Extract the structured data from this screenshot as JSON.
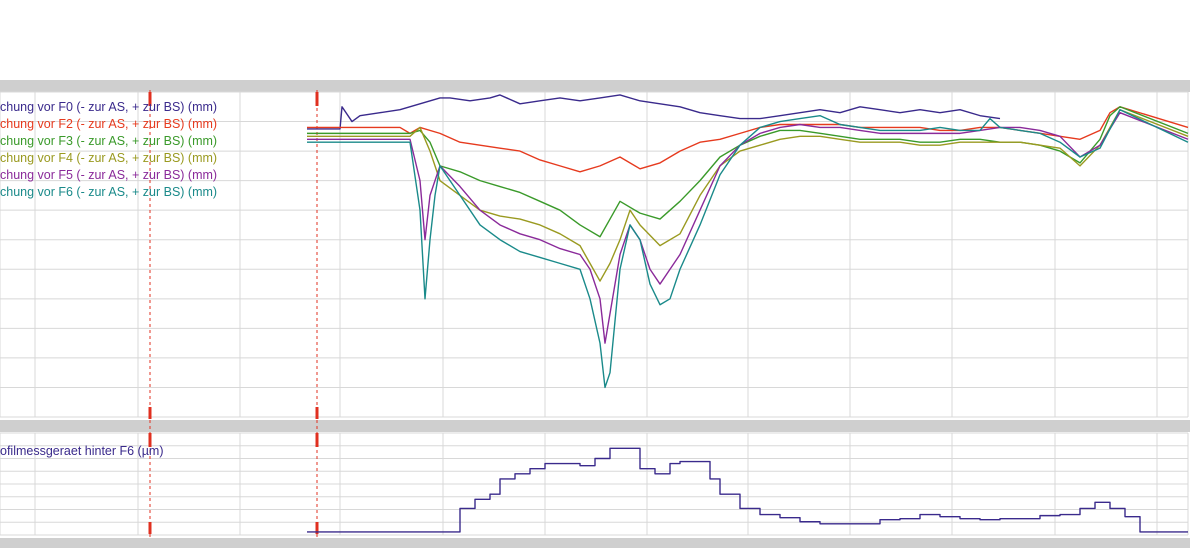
{
  "colors": {
    "background": "#ffffff",
    "panel_band": "#cfcfcf",
    "grid": "#d8d8d8",
    "marker": "#e03020"
  },
  "chart_data": [
    {
      "type": "line",
      "panel": "upper",
      "title": "",
      "xlabel": "",
      "ylabel": "",
      "xlim": [
        0,
        1200
      ],
      "ylim": [
        -100,
        10
      ],
      "grid": true,
      "legend_position": "top-left",
      "vertical_markers": [
        150,
        317
      ],
      "series": [
        {
          "name": "chung vor F0 (- zur AS, + zur BS) (mm)",
          "color": "#3a2a8c",
          "x": [
            307,
            340,
            342,
            352,
            360,
            380,
            400,
            420,
            440,
            450,
            470,
            490,
            500,
            520,
            540,
            560,
            580,
            600,
            620,
            640,
            660,
            680,
            700,
            720,
            740,
            760,
            780,
            800,
            820,
            840,
            860,
            880,
            900,
            920,
            940,
            960,
            980,
            1000
          ],
          "y": [
            -2.5,
            -2.5,
            5,
            0,
            2,
            3,
            4,
            6,
            8,
            8,
            7,
            8,
            9,
            6,
            7,
            8,
            7,
            8,
            9,
            7,
            6,
            5,
            3,
            2,
            1,
            1,
            2,
            3,
            4,
            3,
            5,
            4,
            3,
            4,
            3,
            4,
            2,
            1
          ]
        },
        {
          "name": "chung vor F2 (- zur AS, + zur BS) (mm)",
          "color": "#e63a1e",
          "x": [
            307,
            400,
            410,
            420,
            440,
            460,
            480,
            500,
            520,
            540,
            560,
            580,
            600,
            620,
            640,
            660,
            680,
            700,
            720,
            740,
            760,
            780,
            800,
            820,
            840,
            860,
            880,
            900,
            920,
            940,
            960,
            980,
            1000,
            1020,
            1040,
            1060,
            1080,
            1100,
            1110,
            1120,
            1188
          ],
          "y": [
            -2,
            -2,
            -4,
            -2,
            -4,
            -7,
            -8,
            -9,
            -10,
            -13,
            -15,
            -17,
            -15,
            -12,
            -16,
            -14,
            -10,
            -7,
            -6,
            -4,
            -2,
            -1,
            -1,
            -1,
            -1,
            -2,
            -2,
            -2,
            -2,
            -3,
            -3,
            -2,
            -2,
            -3,
            -4,
            -5,
            -6,
            -3,
            3,
            5,
            -2
          ]
        },
        {
          "name": "chung vor F3 (- zur AS, + zur BS) (mm)",
          "color": "#3a9a2a",
          "x": [
            307,
            410,
            420,
            430,
            440,
            460,
            480,
            500,
            520,
            540,
            560,
            580,
            600,
            610,
            620,
            640,
            660,
            680,
            700,
            720,
            740,
            760,
            780,
            800,
            820,
            840,
            860,
            880,
            900,
            920,
            940,
            960,
            980,
            1000,
            1020,
            1040,
            1060,
            1080,
            1100,
            1110,
            1120,
            1188
          ],
          "y": [
            -4,
            -4,
            -3,
            -7,
            -15,
            -17,
            -20,
            -22,
            -24,
            -27,
            -30,
            -35,
            -39,
            -33,
            -27,
            -31,
            -33,
            -27,
            -20,
            -12,
            -8,
            -5,
            -3,
            -3,
            -4,
            -5,
            -6,
            -6,
            -6,
            -7,
            -7,
            -6,
            -6,
            -7,
            -7,
            -8,
            -10,
            -14,
            -6,
            2,
            5,
            -4
          ]
        },
        {
          "name": "chung vor F4 (- zur AS, + zur BS) (mm)",
          "color": "#9a9a20",
          "x": [
            307,
            410,
            420,
            430,
            440,
            460,
            480,
            500,
            520,
            540,
            560,
            580,
            590,
            600,
            610,
            620,
            630,
            640,
            660,
            680,
            700,
            720,
            740,
            760,
            780,
            800,
            820,
            840,
            860,
            880,
            900,
            920,
            940,
            960,
            980,
            1000,
            1020,
            1040,
            1060,
            1080,
            1100,
            1120,
            1188
          ],
          "y": [
            -5,
            -5,
            -2,
            -10,
            -20,
            -25,
            -30,
            -32,
            -33,
            -35,
            -38,
            -42,
            -48,
            -54,
            -48,
            -40,
            -30,
            -35,
            -42,
            -38,
            -25,
            -15,
            -10,
            -8,
            -6,
            -5,
            -5,
            -6,
            -7,
            -7,
            -7,
            -8,
            -8,
            -7,
            -7,
            -7,
            -7,
            -8,
            -9,
            -15,
            -8,
            4,
            -5
          ]
        },
        {
          "name": "chung vor F5 (- zur AS, + zur BS) (mm)",
          "color": "#8a2a9a",
          "x": [
            307,
            410,
            420,
            425,
            430,
            440,
            460,
            480,
            500,
            520,
            540,
            560,
            580,
            590,
            600,
            605,
            610,
            620,
            630,
            640,
            650,
            660,
            670,
            680,
            700,
            720,
            740,
            760,
            780,
            800,
            820,
            840,
            860,
            880,
            900,
            920,
            940,
            960,
            980,
            1000,
            1020,
            1040,
            1060,
            1080,
            1100,
            1120,
            1188
          ],
          "y": [
            -6,
            -6,
            -20,
            -40,
            -25,
            -15,
            -22,
            -30,
            -35,
            -38,
            -40,
            -43,
            -45,
            -50,
            -60,
            -75,
            -65,
            -45,
            -35,
            -40,
            -50,
            -55,
            -50,
            -45,
            -30,
            -15,
            -8,
            -4,
            -2,
            -1,
            -2,
            -2,
            -3,
            -4,
            -4,
            -4,
            -4,
            -4,
            -3,
            -2,
            -2,
            -3,
            -5,
            -12,
            -8,
            3,
            -6
          ]
        },
        {
          "name": "chung vor F6 (- zur AS, + zur BS) (mm)",
          "color": "#1a8a8a",
          "x": [
            307,
            410,
            420,
            425,
            430,
            435,
            440,
            460,
            480,
            500,
            520,
            540,
            560,
            580,
            590,
            600,
            605,
            610,
            620,
            630,
            640,
            650,
            660,
            670,
            680,
            700,
            720,
            740,
            760,
            780,
            800,
            820,
            840,
            860,
            880,
            900,
            920,
            940,
            960,
            980,
            990,
            1000,
            1020,
            1040,
            1060,
            1080,
            1100,
            1120,
            1188
          ],
          "y": [
            -7,
            -7,
            -30,
            -60,
            -40,
            -25,
            -15,
            -25,
            -35,
            -40,
            -44,
            -46,
            -48,
            -50,
            -60,
            -75,
            -90,
            -85,
            -50,
            -35,
            -40,
            -55,
            -62,
            -60,
            -50,
            -35,
            -18,
            -8,
            -2,
            0,
            1,
            2,
            -1,
            -2,
            -3,
            -3,
            -3,
            -2,
            -3,
            -3,
            1,
            -2,
            -3,
            -4,
            -7,
            -12,
            -9,
            4,
            -7
          ]
        }
      ]
    },
    {
      "type": "line",
      "panel": "lower",
      "title": "",
      "xlabel": "",
      "ylabel": "",
      "xlim": [
        0,
        1200
      ],
      "ylim": [
        0,
        10
      ],
      "grid": true,
      "legend_position": "top-left",
      "vertical_markers": [
        150,
        317
      ],
      "series": [
        {
          "name": "ofilmessgeraet hinter F6 (µm)",
          "color": "#3a2a8c",
          "step": true,
          "x": [
            307,
            460,
            475,
            490,
            500,
            515,
            530,
            545,
            560,
            580,
            595,
            610,
            640,
            655,
            670,
            680,
            710,
            720,
            740,
            760,
            780,
            800,
            820,
            840,
            880,
            900,
            920,
            940,
            960,
            980,
            1000,
            1020,
            1040,
            1060,
            1080,
            1095,
            1110,
            1125,
            1140,
            1188
          ],
          "y": [
            0.3,
            2.6,
            3.5,
            4,
            5.5,
            6,
            6.5,
            7,
            7,
            6.8,
            7.5,
            8.5,
            6.5,
            6,
            7,
            7.2,
            5.5,
            4,
            2.6,
            2,
            1.7,
            1.3,
            1.1,
            1.1,
            1.5,
            1.6,
            2,
            1.8,
            1.6,
            1.5,
            1.6,
            1.6,
            1.9,
            2,
            2.6,
            3.2,
            2.6,
            1.8,
            0.3,
            0.3
          ]
        }
      ]
    }
  ]
}
